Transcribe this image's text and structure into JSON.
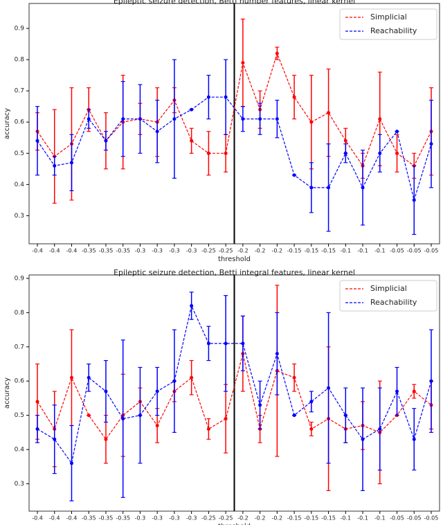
{
  "chart_data": [
    {
      "type": "line",
      "title": "Epileptic seizure detection, Betti number features, linear kernel",
      "x_label": "threshold",
      "y_label": "accuracy",
      "categories": [
        "-0.4",
        "-0.4",
        "-0.4",
        "-0.35",
        "-0.35",
        "-0.35",
        "-0.3",
        "-0.3",
        "-0.3",
        "-0.3",
        "-0.25",
        "-0.25",
        "-0.2",
        "-0.2",
        "-0.2",
        "-0.15",
        "-0.15",
        "-0.15",
        "-0.1",
        "-0.1",
        "-0.1",
        "-0.05",
        "-0.05",
        "-0.05"
      ],
      "ylim": [
        0.21,
        0.98
      ],
      "yticks": [
        0.3,
        0.4,
        0.5,
        0.6,
        0.7,
        0.8,
        0.9
      ],
      "legend": "upper right",
      "series": [
        {
          "name": "Simplicial",
          "color": "#ff0000",
          "values": [
            0.57,
            0.49,
            0.53,
            0.64,
            0.54,
            0.6,
            0.61,
            0.6,
            0.67,
            0.54,
            0.5,
            0.5,
            0.79,
            0.64,
            0.82,
            0.68,
            0.6,
            0.63,
            0.54,
            0.46,
            0.61,
            0.5,
            0.46,
            0.57
          ],
          "errors": [
            0.06,
            0.15,
            0.18,
            0.07,
            0.09,
            0.15,
            0.05,
            0.11,
            0.04,
            0.04,
            0.07,
            0.06,
            0.14,
            0.06,
            0.02,
            0.07,
            0.15,
            0.14,
            0.04,
            0.04,
            0.15,
            0.06,
            0.04,
            0.14
          ]
        },
        {
          "name": "Reachability",
          "color": "#0000ff",
          "values": [
            0.54,
            0.46,
            0.47,
            0.61,
            0.54,
            0.61,
            0.61,
            0.57,
            0.61,
            0.64,
            0.68,
            0.68,
            0.61,
            0.61,
            0.61,
            0.43,
            0.39,
            0.39,
            0.5,
            0.39,
            0.5,
            0.57,
            0.35,
            0.53
          ],
          "errors": [
            0.11,
            0.03,
            0.09,
            0.03,
            0.03,
            0.12,
            0.11,
            0.1,
            0.19,
            0.0,
            0.07,
            0.12,
            0.04,
            0.05,
            0.06,
            0.0,
            0.08,
            0.14,
            0.03,
            0.12,
            0.06,
            0.0,
            0.11,
            0.14
          ]
        }
      ]
    },
    {
      "type": "line",
      "title": "Epileptic seizure detection, Betti integral features, linear kernel",
      "x_label": "threshold",
      "y_label": "accuracy",
      "categories": [
        "-0.4",
        "-0.4",
        "-0.4",
        "-0.35",
        "-0.35",
        "-0.35",
        "-0.3",
        "-0.3",
        "-0.3",
        "-0.3",
        "-0.25",
        "-0.25",
        "-0.2",
        "-0.2",
        "-0.2",
        "-0.15",
        "-0.15",
        "-0.15",
        "-0.1",
        "-0.1",
        "-0.1",
        "-0.05",
        "-0.05",
        "-0.05"
      ],
      "ylim": [
        0.22,
        0.91
      ],
      "yticks": [
        0.3,
        0.4,
        0.5,
        0.6,
        0.7,
        0.8,
        0.9
      ],
      "legend": "upper right",
      "series": [
        {
          "name": "Simplicial",
          "color": "#ff0000",
          "values": [
            0.54,
            0.46,
            0.61,
            0.5,
            0.43,
            0.5,
            0.54,
            0.47,
            0.57,
            0.61,
            0.46,
            0.49,
            0.68,
            0.46,
            0.63,
            0.61,
            0.46,
            0.49,
            0.46,
            0.47,
            0.45,
            0.5,
            0.57,
            0.53
          ],
          "errors": [
            0.11,
            0.11,
            0.14,
            0.0,
            0.07,
            0.12,
            0.04,
            0.05,
            0.03,
            0.05,
            0.03,
            0.1,
            0.11,
            0.04,
            0.25,
            0.04,
            0.02,
            0.21,
            0.04,
            0.07,
            0.15,
            0.0,
            0.02,
            0.07
          ]
        },
        {
          "name": "Reachability",
          "color": "#0000ff",
          "values": [
            0.46,
            0.43,
            0.36,
            0.61,
            0.57,
            0.49,
            0.5,
            0.57,
            0.6,
            0.82,
            0.71,
            0.71,
            0.71,
            0.53,
            0.68,
            0.5,
            0.54,
            0.58,
            0.5,
            0.43,
            0.46,
            0.57,
            0.43,
            0.6
          ],
          "errors": [
            0.04,
            0.1,
            0.11,
            0.04,
            0.09,
            0.23,
            0.14,
            0.07,
            0.15,
            0.04,
            0.05,
            0.14,
            0.08,
            0.07,
            0.12,
            0.0,
            0.03,
            0.22,
            0.08,
            0.15,
            0.12,
            0.07,
            0.09,
            0.15
          ]
        }
      ]
    }
  ]
}
